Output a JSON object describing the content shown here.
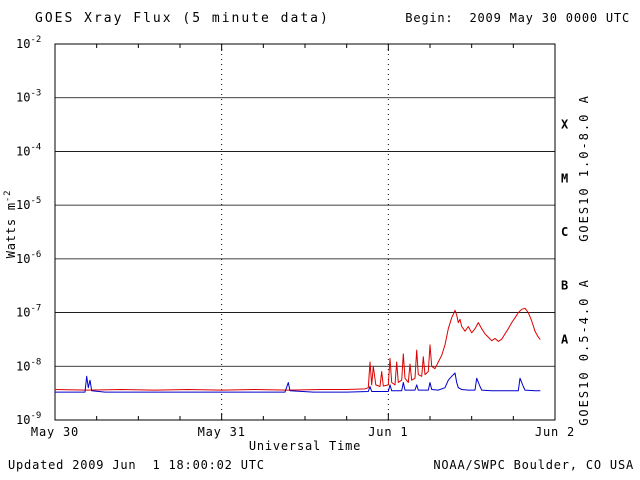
{
  "chart_data": {
    "type": "line",
    "title": "GOES Xray Flux (5 minute data)",
    "begin_label": "Begin:  2009 May 30 0000 UTC",
    "xlabel": "Universal Time",
    "ylabel_base": "Watts m",
    "ylabel_exp": "-2",
    "x_domain_days": [
      0,
      3
    ],
    "x_ticks": [
      {
        "t": 0,
        "label": "May 30"
      },
      {
        "t": 1,
        "label": "May 31"
      },
      {
        "t": 2,
        "label": "Jun 1"
      },
      {
        "t": 3,
        "label": "Jun 2"
      }
    ],
    "y_log_range": [
      -9,
      -2
    ],
    "y_decades": [
      -2,
      -3,
      -4,
      -5,
      -6,
      -7,
      -8,
      -9
    ],
    "ylim": [
      1e-09,
      0.01
    ],
    "grid": {
      "horizontal": "solid",
      "vertical": "dotted",
      "vertical_lines_at_days": [
        1,
        2
      ]
    },
    "flux_classes": [
      {
        "label": "X",
        "log_center": -3.5
      },
      {
        "label": "M",
        "log_center": -4.5
      },
      {
        "label": "C",
        "log_center": -5.5
      },
      {
        "label": "B",
        "log_center": -6.5
      },
      {
        "label": "A",
        "log_center": -7.5
      }
    ],
    "series": [
      {
        "name": "GOES10 1.0-8.0 A",
        "color": "#dd0000",
        "points": [
          [
            0.0,
            3.7e-09
          ],
          [
            0.2,
            3.6e-09
          ],
          [
            0.4,
            3.7e-09
          ],
          [
            0.6,
            3.6e-09
          ],
          [
            0.8,
            3.7e-09
          ],
          [
            1.0,
            3.6e-09
          ],
          [
            1.2,
            3.7e-09
          ],
          [
            1.4,
            3.6e-09
          ],
          [
            1.6,
            3.7e-09
          ],
          [
            1.75,
            3.7e-09
          ],
          [
            1.86,
            3.8e-09
          ],
          [
            1.88,
            4e-09
          ],
          [
            1.89,
            1.2e-08
          ],
          [
            1.9,
            4.5e-09
          ],
          [
            1.91,
            1e-08
          ],
          [
            1.925,
            4.5e-09
          ],
          [
            1.95,
            4.2e-09
          ],
          [
            1.96,
            8e-09
          ],
          [
            1.97,
            4.3e-09
          ],
          [
            2.0,
            4.5e-09
          ],
          [
            2.01,
            1.4e-08
          ],
          [
            2.02,
            5e-09
          ],
          [
            2.04,
            4.5e-09
          ],
          [
            2.05,
            1.2e-08
          ],
          [
            2.06,
            5e-09
          ],
          [
            2.08,
            5.5e-09
          ],
          [
            2.09,
            1.7e-08
          ],
          [
            2.1,
            6e-09
          ],
          [
            2.12,
            5e-09
          ],
          [
            2.13,
            1.1e-08
          ],
          [
            2.14,
            5.5e-09
          ],
          [
            2.16,
            6e-09
          ],
          [
            2.17,
            2e-08
          ],
          [
            2.18,
            7e-09
          ],
          [
            2.2,
            6.5e-09
          ],
          [
            2.21,
            1.5e-08
          ],
          [
            2.22,
            7e-09
          ],
          [
            2.24,
            8e-09
          ],
          [
            2.25,
            2.5e-08
          ],
          [
            2.26,
            1e-08
          ],
          [
            2.28,
            9e-09
          ],
          [
            2.3,
            1.2e-08
          ],
          [
            2.32,
            1.6e-08
          ],
          [
            2.34,
            2.5e-08
          ],
          [
            2.36,
            5e-08
          ],
          [
            2.38,
            8e-08
          ],
          [
            2.4,
            1.1e-07
          ],
          [
            2.41,
            9e-08
          ],
          [
            2.42,
            6.5e-08
          ],
          [
            2.43,
            7.5e-08
          ],
          [
            2.44,
            5.5e-08
          ],
          [
            2.46,
            4.5e-08
          ],
          [
            2.48,
            5.5e-08
          ],
          [
            2.5,
            4.2e-08
          ],
          [
            2.52,
            5e-08
          ],
          [
            2.54,
            6.5e-08
          ],
          [
            2.56,
            5e-08
          ],
          [
            2.58,
            4e-08
          ],
          [
            2.6,
            3.5e-08
          ],
          [
            2.62,
            3e-08
          ],
          [
            2.64,
            3.3e-08
          ],
          [
            2.66,
            2.9e-08
          ],
          [
            2.68,
            3.2e-08
          ],
          [
            2.7,
            4e-08
          ],
          [
            2.72,
            5e-08
          ],
          [
            2.74,
            6.5e-08
          ],
          [
            2.76,
            8e-08
          ],
          [
            2.78,
            1e-07
          ],
          [
            2.8,
            1.15e-07
          ],
          [
            2.82,
            1.2e-07
          ],
          [
            2.84,
            1e-07
          ],
          [
            2.86,
            7e-08
          ],
          [
            2.88,
            4.5e-08
          ],
          [
            2.9,
            3.5e-08
          ],
          [
            2.91,
            3.2e-08
          ]
        ]
      },
      {
        "name": "GOES10 0.5-4.0 A",
        "color": "#0000cc",
        "points": [
          [
            0.0,
            3.3e-09
          ],
          [
            0.18,
            3.3e-09
          ],
          [
            0.19,
            6.5e-09
          ],
          [
            0.2,
            4e-09
          ],
          [
            0.21,
            5.5e-09
          ],
          [
            0.22,
            3.5e-09
          ],
          [
            0.3,
            3.3e-09
          ],
          [
            0.6,
            3.3e-09
          ],
          [
            0.9,
            3.3e-09
          ],
          [
            1.2,
            3.3e-09
          ],
          [
            1.38,
            3.3e-09
          ],
          [
            1.4,
            5e-09
          ],
          [
            1.41,
            3.5e-09
          ],
          [
            1.55,
            3.3e-09
          ],
          [
            1.75,
            3.3e-09
          ],
          [
            1.88,
            3.4e-09
          ],
          [
            1.89,
            4.2e-09
          ],
          [
            1.9,
            3.4e-09
          ],
          [
            2.0,
            3.4e-09
          ],
          [
            2.01,
            4.5e-09
          ],
          [
            2.02,
            3.5e-09
          ],
          [
            2.08,
            3.5e-09
          ],
          [
            2.09,
            5e-09
          ],
          [
            2.1,
            3.6e-09
          ],
          [
            2.16,
            3.6e-09
          ],
          [
            2.17,
            4.5e-09
          ],
          [
            2.18,
            3.6e-09
          ],
          [
            2.24,
            3.6e-09
          ],
          [
            2.25,
            5e-09
          ],
          [
            2.26,
            3.7e-09
          ],
          [
            2.3,
            3.6e-09
          ],
          [
            2.34,
            4e-09
          ],
          [
            2.36,
            5.5e-09
          ],
          [
            2.38,
            6.5e-09
          ],
          [
            2.4,
            7.5e-09
          ],
          [
            2.41,
            5e-09
          ],
          [
            2.42,
            4e-09
          ],
          [
            2.44,
            3.7e-09
          ],
          [
            2.48,
            3.6e-09
          ],
          [
            2.52,
            3.6e-09
          ],
          [
            2.53,
            6e-09
          ],
          [
            2.55,
            4.2e-09
          ],
          [
            2.56,
            3.6e-09
          ],
          [
            2.62,
            3.5e-09
          ],
          [
            2.7,
            3.5e-09
          ],
          [
            2.78,
            3.5e-09
          ],
          [
            2.79,
            6e-09
          ],
          [
            2.81,
            4.2e-09
          ],
          [
            2.82,
            3.6e-09
          ],
          [
            2.88,
            3.5e-09
          ],
          [
            2.91,
            3.5e-09
          ]
        ]
      }
    ]
  },
  "footer": {
    "updated": "Updated 2009 Jun  1 18:00:02 UTC",
    "credit": "NOAA/SWPC Boulder, CO USA"
  }
}
